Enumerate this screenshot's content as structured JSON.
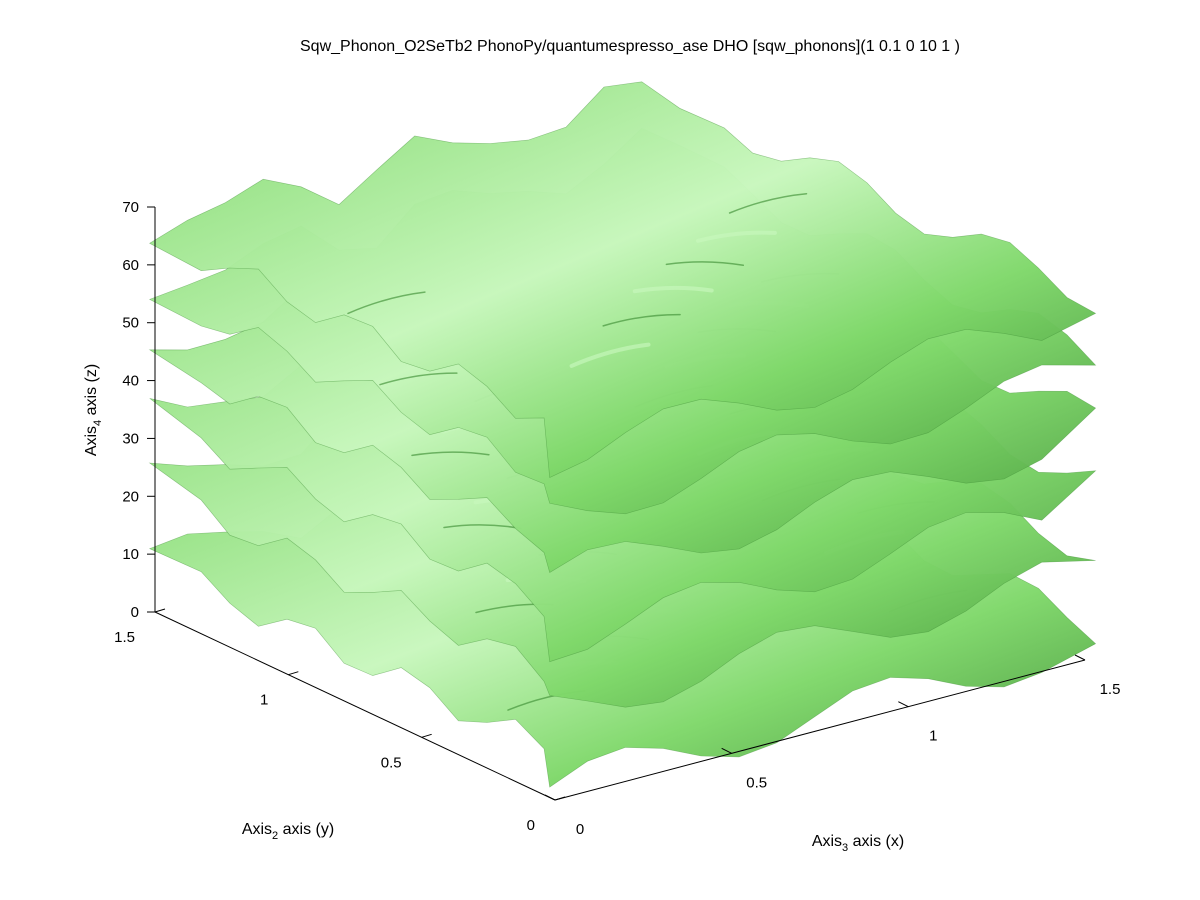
{
  "chart_data": {
    "type": "isosurface-3d",
    "title": "Sqw_Phonon_O2SeTb2 PhonoPy/quantumespresso_ase DHO [sqw_phonons](1 0.1 0 10 1 )",
    "xlabel": {
      "main": "Axis",
      "sub": "3",
      "rest": " axis (x)"
    },
    "ylabel": {
      "main": "Axis",
      "sub": "2",
      "rest": " axis (y)"
    },
    "zlabel": {
      "main": "Axis",
      "sub": "4",
      "rest": " axis (z)"
    },
    "xlim": [
      0,
      1.5
    ],
    "ylim": [
      0,
      1.5
    ],
    "zlim": [
      0,
      70
    ],
    "xticks": [
      0,
      0.5,
      1,
      1.5
    ],
    "yticks": [
      0,
      0.5,
      1,
      1.5
    ],
    "zticks": [
      0,
      10,
      20,
      30,
      40,
      50,
      60,
      70
    ],
    "xtick_labels": [
      "0",
      "0.5",
      "1",
      "1.5"
    ],
    "ytick_labels": [
      "0",
      "0.5",
      "1",
      "1.5"
    ],
    "ztick_labels": [
      "0",
      "10",
      "20",
      "30",
      "40",
      "50",
      "60",
      "70"
    ],
    "grid": false,
    "surface_color": "#7fd86a",
    "surface_highlight": "#c8f7bd",
    "surface_shadow": "#3f8f35",
    "surface_layers_z": [
      5,
      18,
      30,
      41,
      52,
      62
    ]
  }
}
